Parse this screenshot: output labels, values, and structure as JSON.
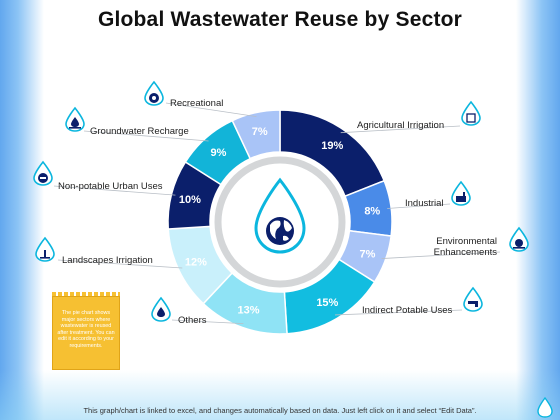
{
  "title": "Global Wastewater Reuse by Sector",
  "chart_data": {
    "type": "pie",
    "subtype": "donut",
    "categories": [
      "Agricultural Irrigation",
      "Industrial",
      "Environmental Enhancements",
      "Indirect Potable Uses",
      "Others",
      "Landscapes Irrigation",
      "Non-potable Urban Uses",
      "Groundwater Recharge",
      "Recreational"
    ],
    "values": [
      19,
      8,
      7,
      15,
      13,
      12,
      10,
      9,
      7
    ],
    "value_labels": [
      "19%",
      "8%",
      "7%",
      "15%",
      "13%",
      "12%",
      "10%",
      "9%",
      "7%"
    ],
    "colors": [
      "#0b1f6b",
      "#4a8be8",
      "#a9c4f7",
      "#12bde0",
      "#8fe3f5",
      "#c9f0fb",
      "#0b1f6b",
      "#12b4d8",
      "#a9c4f7"
    ],
    "label_colors": [
      "#ffffff",
      "#ffffff",
      "#ffffff",
      "#ffffff",
      "#ffffff",
      "#ffffff",
      "#ffffff",
      "#ffffff",
      "#ffffff"
    ]
  },
  "labels": {
    "recreational": "Recreational",
    "groundwater": "Groundwater Recharge",
    "nonpotable": "Non-potable Urban Uses",
    "landscapes": "Landscapes Irrigation",
    "others": "Others",
    "agricultural": "Agricultural Irrigation",
    "industrial": "Industrial",
    "environmental_1": "Environmental",
    "environmental_2": "Enhancements",
    "indirect": "Indirect Potable Uses"
  },
  "note": "The pie chart shows major sectors where wastewater is reused after treatment. You can edit it according to your requirements.",
  "footer": "This graph/chart is linked to excel, and changes automatically based on data. Just left click on it and select “Edit Data”.",
  "icons": {
    "center": "globe-water-drop-icon",
    "recreational": "swimmer-drop-icon",
    "groundwater": "water-drop-level-icon",
    "nonpotable": "car-drop-icon",
    "landscapes": "plant-drop-icon",
    "others": "drop-icon",
    "agricultural": "field-drop-icon",
    "industrial": "factory-drop-icon",
    "environmental": "globe-hand-drop-icon",
    "indirect": "faucet-drop-icon"
  }
}
